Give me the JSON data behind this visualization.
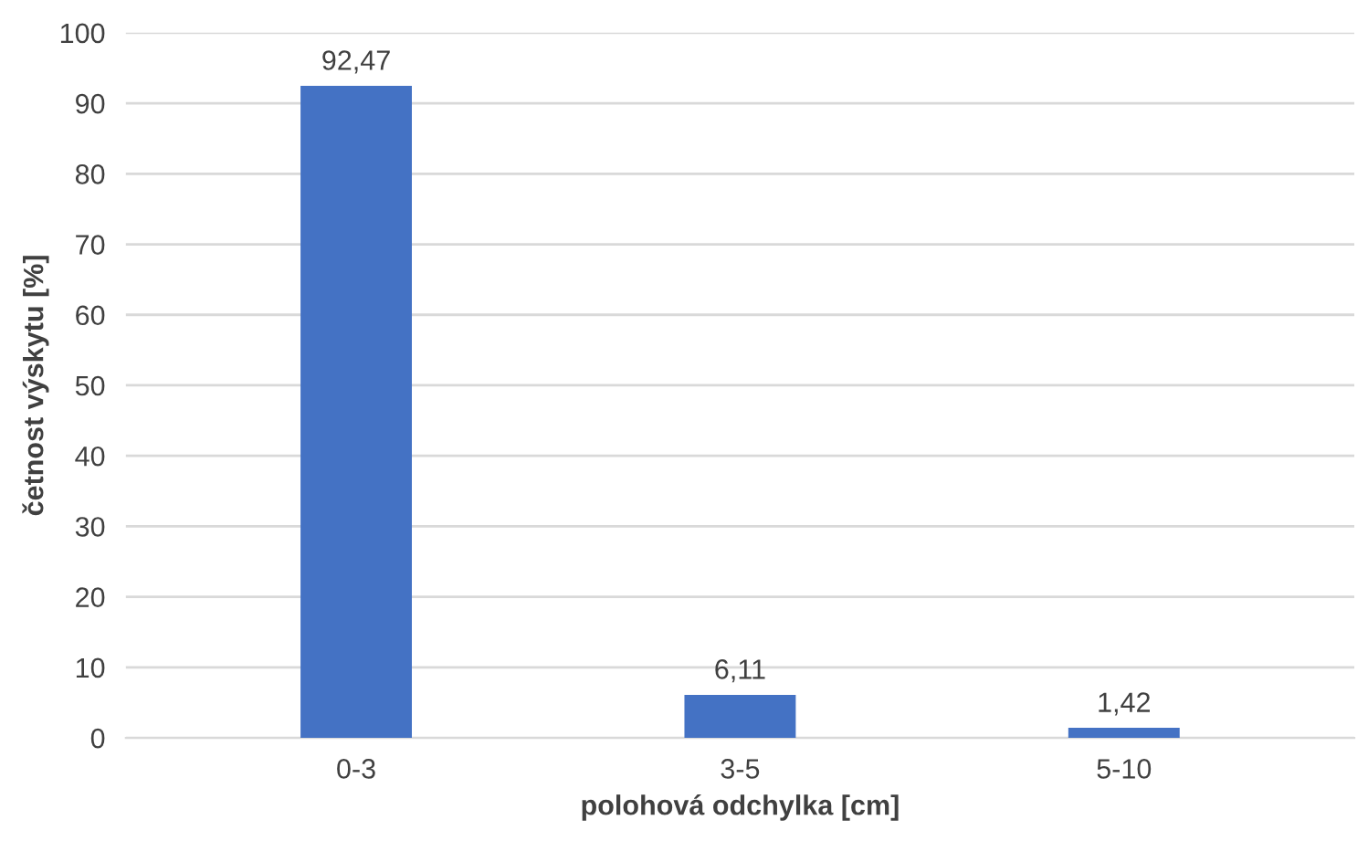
{
  "chart_data": {
    "type": "bar",
    "xlabel": "polohová odchylka [cm]",
    "ylabel": "četnost výskytu [%]",
    "categories": [
      "0-3",
      "3-5",
      "5-10"
    ],
    "values": [
      92.47,
      6.11,
      1.42
    ],
    "value_labels": [
      "92,47",
      "6,11",
      "1,42"
    ],
    "color": "#4472c4",
    "ylim": [
      0,
      100
    ],
    "yticks": [
      0,
      10,
      20,
      30,
      40,
      50,
      60,
      70,
      80,
      90,
      100
    ],
    "grid": "y",
    "legend": false
  }
}
